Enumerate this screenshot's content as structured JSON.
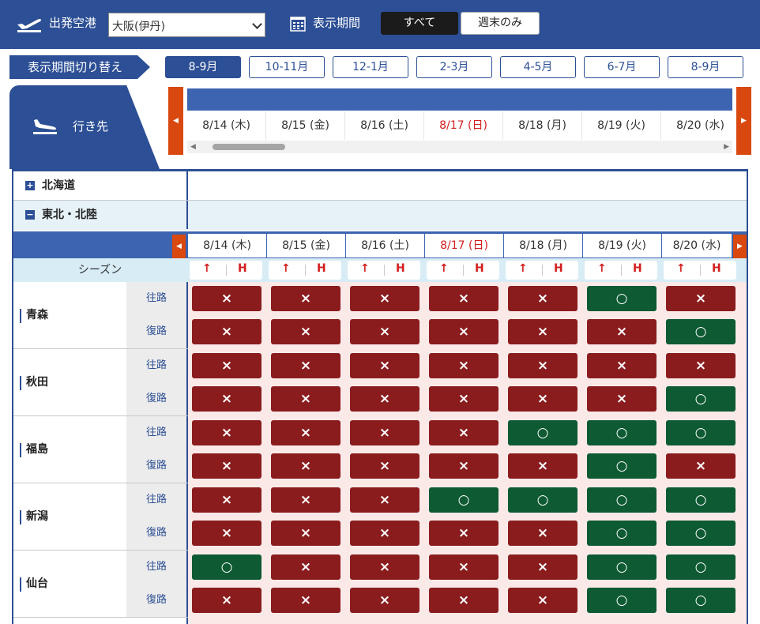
{
  "header": {
    "departure_label": "出発空港",
    "departure_value": "大阪(伊丹)",
    "period_label": "表示期間",
    "toggle_all": "すべて",
    "toggle_weekend": "週末のみ"
  },
  "period_switch": {
    "label": "表示期間切り替え",
    "tabs": [
      "8-9月",
      "10-11月",
      "12-1月",
      "2-3月",
      "4-5月",
      "6-7月",
      "8-9月"
    ],
    "active_index": 0
  },
  "destination_label": "行き先",
  "dates": [
    {
      "label": "8/14 (木)",
      "holiday": false
    },
    {
      "label": "8/15 (金)",
      "holiday": false
    },
    {
      "label": "8/16 (土)",
      "holiday": false
    },
    {
      "label": "8/17 (日)",
      "holiday": true
    },
    {
      "label": "8/18 (月)",
      "holiday": false
    },
    {
      "label": "8/19 (火)",
      "holiday": false
    },
    {
      "label": "8/20 (水)",
      "holiday": false
    }
  ],
  "regions": [
    {
      "name": "北海道",
      "expanded": false
    },
    {
      "name": "東北・北陸",
      "expanded": true
    }
  ],
  "season_label": "シーズン",
  "season_marks": {
    "up": "↑",
    "h": "H"
  },
  "outbound_label": "往路",
  "return_label": "復路",
  "cities": [
    {
      "name": "青森",
      "outbound": [
        "×",
        "×",
        "×",
        "×",
        "×",
        "○",
        "×"
      ],
      "return": [
        "×",
        "×",
        "×",
        "×",
        "×",
        "×",
        "○"
      ]
    },
    {
      "name": "秋田",
      "outbound": [
        "×",
        "×",
        "×",
        "×",
        "×",
        "×",
        "×"
      ],
      "return": [
        "×",
        "×",
        "×",
        "×",
        "×",
        "×",
        "○"
      ]
    },
    {
      "name": "福島",
      "outbound": [
        "×",
        "×",
        "×",
        "×",
        "○",
        "○",
        "○"
      ],
      "return": [
        "×",
        "×",
        "×",
        "×",
        "×",
        "○",
        "×"
      ]
    },
    {
      "name": "新潟",
      "outbound": [
        "×",
        "×",
        "×",
        "○",
        "○",
        "○",
        "○"
      ],
      "return": [
        "×",
        "×",
        "×",
        "×",
        "×",
        "○",
        "○"
      ]
    },
    {
      "name": "仙台",
      "outbound": [
        "○",
        "×",
        "×",
        "×",
        "×",
        "○",
        "○"
      ],
      "return": [
        "×",
        "×",
        "×",
        "×",
        "×",
        "○",
        "○"
      ]
    }
  ],
  "colors": {
    "navy": "#2c4f95",
    "unavailable": "#8a1c1e",
    "available": "#0d5a33",
    "holiday_text": "#d31f1f",
    "arrow": "#d9480f"
  }
}
